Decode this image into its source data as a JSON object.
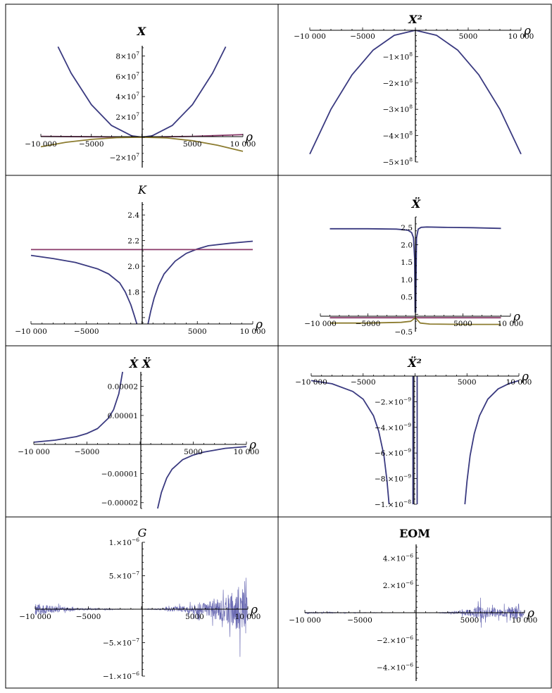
{
  "colors": {
    "series1": "#3a3a80",
    "series2": "#8a3a6a",
    "series3": "#8c7c30",
    "noise": "#3a3a9a"
  },
  "chart_data": [
    {
      "id": "X",
      "type": "line",
      "title": "X",
      "xlabel": "ρ",
      "xlim": [
        -10000,
        10000
      ],
      "ylim": [
        -30000000,
        90000000
      ],
      "xticks": [
        -10000,
        -5000,
        5000,
        10000
      ],
      "xtick_labels": [
        "−10 000",
        "−5000",
        "5000",
        "10 000"
      ],
      "yticks": [
        -20000000,
        20000000,
        40000000,
        60000000,
        80000000
      ],
      "ytick_labels": [
        "−2×10^7",
        "2×10^7",
        "4×10^7",
        "6×10^7",
        "8×10^7"
      ],
      "series": [
        {
          "color": "#3a3a80",
          "x": [
            -8300,
            -7000,
            -5000,
            -3000,
            -1000,
            0,
            1000,
            3000,
            5000,
            7000,
            8300
          ],
          "y": [
            89000000,
            63000000,
            32000000,
            11500000,
            1300000,
            0,
            1300000,
            11500000,
            32000000,
            63000000,
            89000000
          ]
        },
        {
          "color": "#8a3a6a",
          "x": [
            -10000,
            -5000,
            0,
            5000,
            10000
          ],
          "y": [
            800000,
            400000,
            0,
            800000,
            2500000
          ]
        },
        {
          "color": "#8c7c30",
          "x": [
            -10000,
            -7500,
            -5000,
            -2500,
            0,
            2500,
            5000,
            7500,
            10000
          ],
          "y": [
            -9500000,
            -5000000,
            -2200000,
            -500000,
            0,
            -800000,
            -3500000,
            -8000000,
            -14000000
          ]
        }
      ]
    },
    {
      "id": "X2",
      "type": "line",
      "title": "X²",
      "xlabel": "ρ",
      "xlim": [
        -10000,
        10000
      ],
      "ylim": [
        -500000000,
        0
      ],
      "xticks": [
        -10000,
        -5000,
        5000,
        10000
      ],
      "xtick_labels": [
        "−10 000",
        "−5000",
        "5000",
        "10 000"
      ],
      "yticks": [
        -100000000,
        -200000000,
        -300000000,
        -400000000,
        -500000000
      ],
      "ytick_labels": [
        "−1×10^8",
        "−2×10^8",
        "−3×10^8",
        "−4×10^8",
        "−5×10^8"
      ],
      "series": [
        {
          "color": "#3a3a80",
          "x": [
            -10000,
            -8000,
            -6000,
            -4000,
            -2000,
            0,
            2000,
            4000,
            6000,
            8000,
            10000
          ],
          "y": [
            -470000000,
            -300000000,
            -169000000,
            -75000000,
            -19000000,
            0,
            -19000000,
            -75000000,
            -169000000,
            -300000000,
            -470000000
          ]
        }
      ]
    },
    {
      "id": "K",
      "type": "line",
      "title": "K",
      "xlabel": "ρ",
      "xlim": [
        -10000,
        10000
      ],
      "ylim": [
        1.55,
        2.5
      ],
      "xticks": [
        -10000,
        -5000,
        5000,
        10000
      ],
      "xtick_labels": [
        "−10 000",
        "−5000",
        "5000",
        "10 000"
      ],
      "yticks": [
        1.8,
        2.0,
        2.2,
        2.4
      ],
      "ytick_labels": [
        "1.8",
        "2.0",
        "2.2",
        "2.4"
      ],
      "series": [
        {
          "color": "#3a3a80",
          "x": [
            -10000,
            -8000,
            -6000,
            -4000,
            -3000,
            -2000,
            -1500,
            -1000,
            -700,
            -450
          ],
          "y": [
            2.085,
            2.06,
            2.03,
            1.98,
            1.94,
            1.87,
            1.8,
            1.7,
            1.62,
            1.55
          ]
        },
        {
          "color": "#3a3a80",
          "x": [
            550,
            800,
            1100,
            1500,
            2000,
            3000,
            4000,
            5000,
            6000,
            8000,
            10000
          ],
          "y": [
            1.55,
            1.65,
            1.75,
            1.85,
            1.94,
            2.04,
            2.1,
            2.135,
            2.16,
            2.18,
            2.195
          ]
        },
        {
          "color": "#8a3a6a",
          "x": [
            -10000,
            10000
          ],
          "y": [
            2.13,
            2.13
          ]
        }
      ]
    },
    {
      "id": "Xdd",
      "type": "line",
      "title": "Ẍ",
      "xlabel": "ρ",
      "xlim": [
        -10000,
        10000
      ],
      "ylim": [
        -0.5,
        2.8
      ],
      "xticks": [
        -10000,
        -5000,
        5000,
        10000
      ],
      "xtick_labels": [
        "−10 000",
        "−5000",
        "5000",
        "10 000"
      ],
      "yticks": [
        -0.5,
        0.5,
        1.0,
        1.5,
        2.0,
        2.5
      ],
      "ytick_labels": [
        "−0.5",
        "0.5",
        "1.0",
        "1.5",
        "2.0",
        "2.5"
      ],
      "series": [
        {
          "color": "#3a3a80",
          "x": [
            -9000,
            -5000,
            -2000,
            -800,
            -400,
            -200,
            -80,
            -30
          ],
          "y": [
            2.46,
            2.46,
            2.45,
            2.42,
            2.35,
            2.2,
            1.6,
            0.05
          ]
        },
        {
          "color": "#3a3a80",
          "x": [
            30,
            120,
            300,
            600,
            1200,
            3000,
            6000,
            9000
          ],
          "y": [
            0.05,
            2.2,
            2.45,
            2.5,
            2.51,
            2.5,
            2.49,
            2.47
          ]
        },
        {
          "color": "#8a3a6a",
          "x": [
            -9000,
            9000
          ],
          "y": [
            -0.1,
            -0.1
          ]
        },
        {
          "color": "#8c7c30",
          "x": [
            -9000,
            -5000,
            -1500,
            -500,
            0,
            500,
            1500,
            5000,
            9000
          ],
          "y": [
            -0.25,
            -0.25,
            -0.23,
            -0.2,
            -0.1,
            -0.25,
            -0.28,
            -0.29,
            -0.29
          ]
        }
      ]
    },
    {
      "id": "XdXdd",
      "type": "line",
      "title": "Ẋ Ẍ",
      "xlabel": "ρ",
      "xlim": [
        -10000,
        10000
      ],
      "ylim": [
        -2.2e-05,
        2.5e-05
      ],
      "xticks": [
        -10000,
        -5000,
        5000,
        10000
      ],
      "xtick_labels": [
        "−10 000",
        "−5000",
        "5000",
        "10 000"
      ],
      "yticks": [
        -2e-05,
        -1e-05,
        1e-05,
        2e-05
      ],
      "ytick_labels": [
        "−0.00002",
        "−0.00001",
        "0.00001",
        "0.00002"
      ],
      "series": [
        {
          "color": "#3a3a80",
          "x": [
            -10000,
            -8000,
            -6000,
            -5000,
            -4000,
            -3000,
            -2500,
            -2000,
            -1650
          ],
          "y": [
            8e-07,
            1.5e-06,
            2.7e-06,
            3.8e-06,
            5.5e-06,
            9e-06,
            1.2e-05,
            1.75e-05,
            2.5e-05
          ]
        },
        {
          "color": "#3a3a80",
          "x": [
            1650,
            2000,
            2500,
            3000,
            4000,
            5000,
            6000,
            8000,
            10000
          ],
          "y": [
            -2.2e-05,
            -1.65e-05,
            -1.15e-05,
            -8.5e-06,
            -5.2e-06,
            -3.6e-06,
            -2.6e-06,
            -1.3e-06,
            -7e-07
          ]
        }
      ]
    },
    {
      "id": "Xdd2",
      "type": "line",
      "title": "Ẍ²",
      "xlabel": "ρ",
      "xlim": [
        -10000,
        10000
      ],
      "ylim": [
        -1e-08,
        0
      ],
      "xticks": [
        -10000,
        -5000,
        5000,
        10000
      ],
      "xtick_labels": [
        "−10 000",
        "−5000",
        "5000",
        "10 000"
      ],
      "yticks": [
        -2e-09,
        -4e-09,
        -6e-09,
        -8e-09,
        -1e-08
      ],
      "ytick_labels": [
        "−2.×10^−9",
        "−4.×10^−9",
        "−6.×10^−9",
        "−8.×10^−9",
        "−1.×10^−8"
      ],
      "series": [
        {
          "color": "#3a3a80",
          "x": [
            -10000,
            -8000,
            -6000,
            -5000,
            -4000,
            -3500,
            -3000,
            -2700,
            -2500
          ],
          "y": [
            -3.5e-10,
            -6e-10,
            -1.2e-09,
            -1.8e-09,
            -3.1e-09,
            -4.3e-09,
            -6.2e-09,
            -8.2e-09,
            -1e-08
          ]
        },
        {
          "color": "#3a3a80",
          "x": [
            -200,
            -200
          ],
          "y": [
            0,
            -1e-08
          ]
        },
        {
          "color": "#3a3a80",
          "x": [
            200,
            200
          ],
          "y": [
            0,
            -1e-08
          ]
        },
        {
          "color": "#3a3a80",
          "x": [
            4800,
            5000,
            5300,
            5700,
            6200,
            7000,
            8000,
            9000,
            10000
          ],
          "y": [
            -1e-08,
            -8.2e-09,
            -6.2e-09,
            -4.5e-09,
            -3.1e-09,
            -1.8e-09,
            -1e-09,
            -6e-10,
            -3.5e-10
          ]
        }
      ]
    },
    {
      "id": "G",
      "type": "line",
      "title": "G",
      "xlabel": "ρ",
      "xlim": [
        -10000,
        10000
      ],
      "ylim": [
        -1e-06,
        1e-06
      ],
      "xticks": [
        -10000,
        -5000,
        5000,
        10000
      ],
      "xtick_labels": [
        "−10 000",
        "−5000",
        "5000",
        "10 000"
      ],
      "yticks": [
        -1e-06,
        -5e-07,
        5e-07,
        1e-06
      ],
      "ytick_labels": [
        "−1.×10^−6",
        "−5.×10^−7",
        "5.×10^−7",
        "1.×10^−6"
      ],
      "series": [],
      "noise_envelope": {
        "x": [
          -10000,
          -8000,
          -6000,
          -4000,
          -2000,
          0,
          2000,
          4000,
          6000,
          8000,
          9300,
          10000
        ],
        "amplitude": [
          2e-07,
          1e-07,
          3e-08,
          2e-08,
          1e-08,
          0.0,
          3e-08,
          1e-07,
          2.2e-07,
          4.5e-07,
          8e-07,
          4e-07
        ]
      }
    },
    {
      "id": "EOM",
      "type": "line",
      "title": "EOM",
      "xlabel": "ρ",
      "xlim": [
        -10000,
        10000
      ],
      "ylim": [
        -5e-06,
        5e-06
      ],
      "xticks": [
        -10000,
        -5000,
        5000,
        10000
      ],
      "xtick_labels": [
        "−10 000",
        "−5000",
        "5000",
        "10 000"
      ],
      "yticks": [
        -4e-06,
        -2e-06,
        2e-06,
        4e-06
      ],
      "ytick_labels": [
        "−4.×10^−6",
        "−2.×10^−6",
        "2.×10^−6",
        "4.×10^−6"
      ],
      "series": [],
      "noise_envelope": {
        "x": [
          -10000,
          -6000,
          -2000,
          0,
          2000,
          4000,
          5000,
          6000,
          7000,
          8000,
          9300,
          10000
        ],
        "amplitude": [
          1e-07,
          5e-08,
          2e-08,
          0.0,
          3e-08,
          2e-07,
          6e-07,
          1.2e-06,
          8e-07,
          6e-07,
          1.1e-06,
          3e-07
        ]
      }
    }
  ]
}
